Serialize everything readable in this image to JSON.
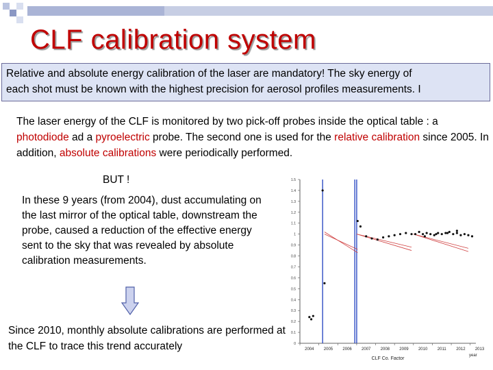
{
  "title": "CLF calibration system",
  "banner": {
    "line1": "Relative and absolute energy calibration of the laser are mandatory! The sky energy of",
    "line2": "each shot must be known with the highest precision for aerosol profiles measurements. I"
  },
  "para1": {
    "t1": "The laser energy of the CLF is monitored by two pick-off probes inside the optical table : a ",
    "photodiode": "photodiode",
    "t2": " ad a ",
    "pyroelectric": "pyroelectric",
    "t3": " probe. The second one is used for the ",
    "relative": "relative calibration",
    "t4": " since 2005. In addition, ",
    "absolute": "absolute calibrations",
    "t5": "  were periodically performed."
  },
  "but": "BUT !",
  "para2": "In these 9 years (from 2004), dust accumulating on the last mirror of the optical table, downstream the probe, caused a reduction of the effective energy sent to the sky that was revealed by absolute calibration measurements.",
  "para3": "Since 2010, monthly absolute calibrations are performed at the CLF to trace this trend accurately",
  "colors": {
    "title": "#c00000",
    "highlight": "#c00000",
    "banner_bg": "#dde3f4",
    "vline": "#1f3fbf"
  },
  "chart_data": {
    "type": "scatter",
    "x_tick_labels": [
      "2004",
      "2005",
      "2006",
      "2007",
      "2008",
      "2009",
      "2010",
      "2011",
      "2012",
      "2013"
    ],
    "xlabel": "CLF Co. Factor",
    "x_unit": "year",
    "y_tick_labels": [
      "1.5",
      "1.4",
      "1.3",
      "1.2",
      "1.1",
      "1",
      "0.9",
      "0.8",
      "0.7",
      "0.6",
      "0.5",
      "0.4",
      "0.3",
      "0.2",
      "0.1",
      "0"
    ],
    "ylim": [
      0,
      1.5
    ],
    "xlim": [
      2004,
      2013.3
    ],
    "vertical_markers": [
      2005.2,
      2006.9,
      2007.0
    ],
    "series": [
      {
        "x": [
          2004.5,
          2004.6,
          2004.7
        ],
        "y": [
          0.24,
          0.22,
          0.25
        ]
      },
      {
        "x": [
          2005.2,
          2005.3
        ],
        "y": [
          1.4,
          0.55
        ]
      },
      {
        "x": [
          2007.05,
          2007.2,
          2007.5,
          2007.8,
          2008.1,
          2008.4,
          2008.7,
          2009.0,
          2009.3,
          2009.6,
          2009.9
        ],
        "y": [
          1.12,
          1.07,
          0.98,
          0.96,
          0.95,
          0.97,
          0.98,
          0.99,
          1.0,
          1.01,
          1.0
        ]
      },
      {
        "x": [
          2010.1,
          2010.3,
          2010.5,
          2010.7,
          2010.9,
          2011.1,
          2011.3,
          2011.5,
          2011.7,
          2011.9,
          2012.1,
          2012.3,
          2012.5,
          2012.7,
          2012.9,
          2013.1
        ],
        "y": [
          1.0,
          1.02,
          1.0,
          1.01,
          1.0,
          0.99,
          1.01,
          1.0,
          1.01,
          1.02,
          1.0,
          1.01,
          0.99,
          1.0,
          0.99,
          0.98
        ]
      },
      {
        "x": [
          2010.6,
          2011.2,
          2011.8,
          2012.3
        ],
        "y": [
          0.98,
          1.0,
          1.01,
          1.03
        ]
      }
    ],
    "trend_lines": [
      {
        "x": [
          2005.3,
          2007.05
        ],
        "y": [
          1.02,
          0.83
        ]
      },
      {
        "x": [
          2005.3,
          2007.05
        ],
        "y": [
          1.0,
          0.86
        ]
      },
      {
        "x": [
          2007.0,
          2009.9
        ],
        "y": [
          1.0,
          0.85
        ]
      },
      {
        "x": [
          2007.0,
          2009.9
        ],
        "y": [
          1.0,
          0.88
        ]
      },
      {
        "x": [
          2010.0,
          2012.9
        ],
        "y": [
          1.0,
          0.84
        ]
      },
      {
        "x": [
          2010.0,
          2012.9
        ],
        "y": [
          1.0,
          0.87
        ]
      }
    ]
  }
}
